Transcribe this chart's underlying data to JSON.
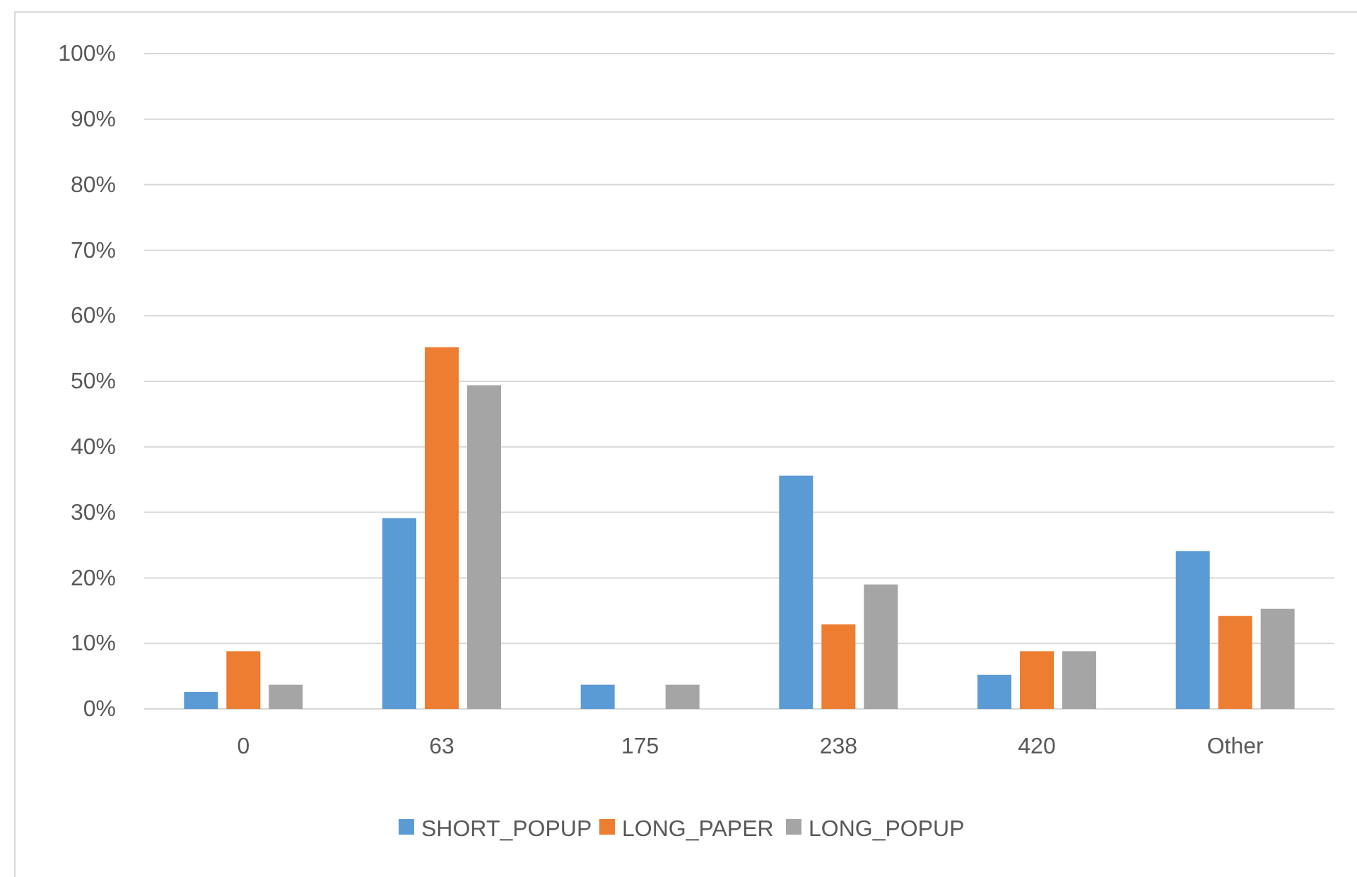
{
  "chart_data": {
    "type": "bar",
    "categories": [
      "0",
      "63",
      "175",
      "238",
      "420",
      "Other"
    ],
    "series": [
      {
        "name": "SHORT_POPUP",
        "color": "#5b9bd5",
        "values": [
          2.6,
          29.1,
          3.7,
          35.6,
          5.2,
          24.1
        ]
      },
      {
        "name": "LONG_PAPER",
        "color": "#ed7d31",
        "values": [
          8.8,
          55.2,
          0,
          12.9,
          8.8,
          14.2
        ]
      },
      {
        "name": "LONG_POPUP",
        "color": "#a5a5a5",
        "values": [
          3.7,
          49.4,
          3.7,
          19.0,
          8.8,
          15.3
        ]
      }
    ],
    "ylim": [
      0,
      100
    ],
    "yticks": [
      {
        "value": 0,
        "label": "0%"
      },
      {
        "value": 10,
        "label": "10%"
      },
      {
        "value": 20,
        "label": "20%"
      },
      {
        "value": 30,
        "label": "30%"
      },
      {
        "value": 40,
        "label": "40%"
      },
      {
        "value": 50,
        "label": "50%"
      },
      {
        "value": 60,
        "label": "60%"
      },
      {
        "value": 70,
        "label": "70%"
      },
      {
        "value": 80,
        "label": "80%"
      },
      {
        "value": 90,
        "label": "90%"
      },
      {
        "value": 100,
        "label": "100%"
      }
    ],
    "grid": "y",
    "legend": "bottom"
  }
}
